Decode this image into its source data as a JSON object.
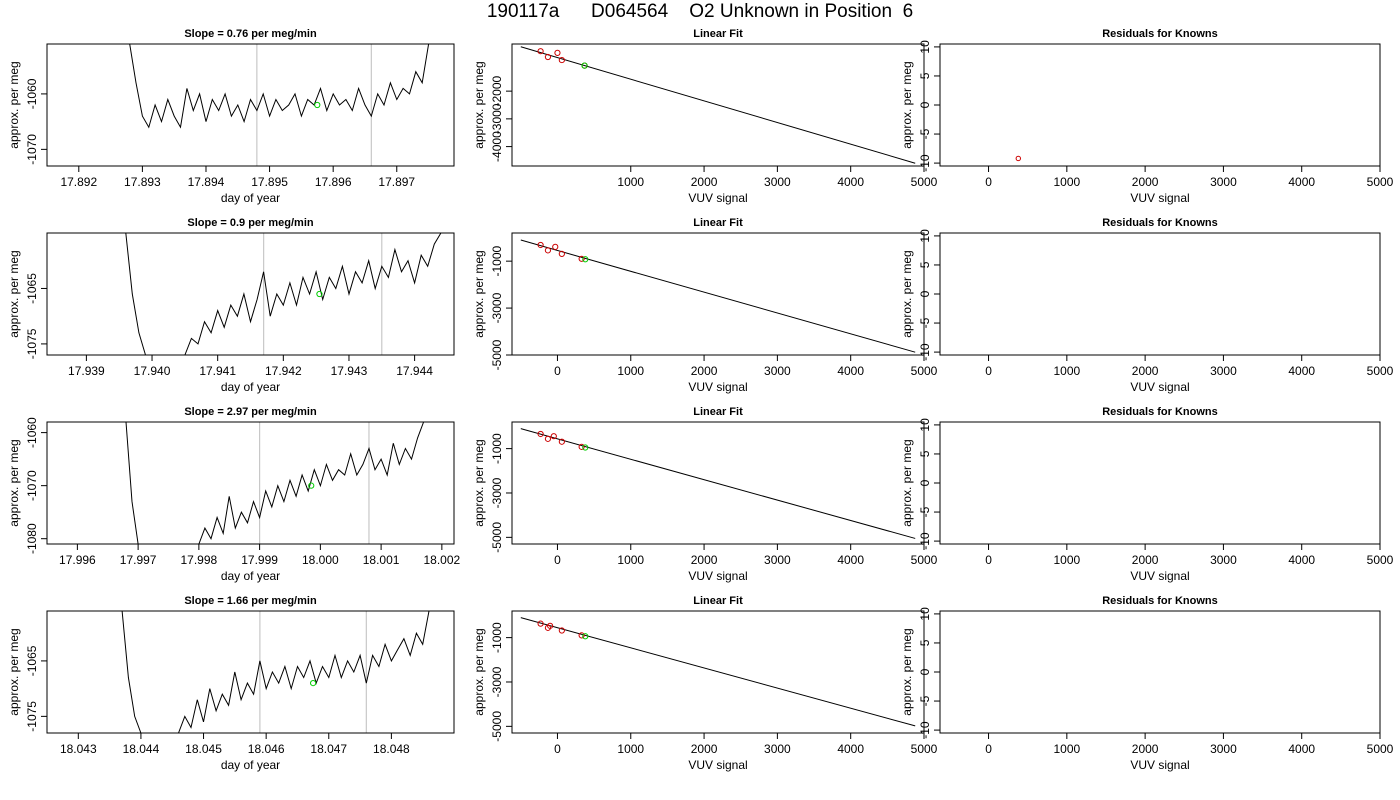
{
  "title": "190117a      D064564    O2 Unknown in Position  6",
  "colors": {
    "trace": "#000000",
    "vertical_marker": "#c8c8c8",
    "unknown_point": "#00cc00",
    "known_point": "#cc0000",
    "fit_line": "#000000"
  },
  "chart_data": [
    {
      "type": "line",
      "row": 1,
      "panel": "time-series",
      "title": "Slope =  0.76  per meg/min",
      "xlabel": "day of year",
      "ylabel": "approx. per meg",
      "xlim": [
        17.8915,
        17.8979
      ],
      "ylim": [
        -1073,
        -1051
      ],
      "xticks": [
        "17.892",
        "17.893",
        "17.894",
        "17.895",
        "17.896",
        "17.897"
      ],
      "yticks": [
        "-1060",
        "-1070"
      ],
      "vlines": [
        17.8948,
        17.8966
      ],
      "series": [
        {
          "x": [
            17.8928,
            17.8929,
            17.893,
            17.8931,
            17.8932,
            17.8933,
            17.8934,
            17.8935,
            17.8936,
            17.8937,
            17.8938,
            17.8939,
            17.894,
            17.8941,
            17.8942,
            17.8943,
            17.8944,
            17.8945,
            17.8946,
            17.8947,
            17.8948,
            17.8949,
            17.895,
            17.8951,
            17.8952,
            17.8953,
            17.8954,
            17.8955,
            17.8956,
            17.8957,
            17.8958,
            17.8959,
            17.896,
            17.8961,
            17.8962,
            17.8963,
            17.8964,
            17.8965,
            17.8966,
            17.8967,
            17.8968,
            17.8969,
            17.897,
            17.8971,
            17.8972,
            17.8973,
            17.8974,
            17.8975
          ],
          "y": [
            -1051,
            -1058,
            -1064,
            -1066,
            -1062,
            -1065,
            -1061,
            -1064,
            -1066,
            -1059,
            -1063,
            -1060,
            -1065,
            -1061,
            -1063,
            -1060,
            -1064,
            -1062,
            -1065,
            -1061,
            -1063,
            -1060,
            -1064,
            -1061,
            -1063,
            -1062,
            -1060,
            -1064,
            -1061,
            -1062,
            -1059,
            -1063,
            -1060,
            -1062,
            -1061,
            -1063,
            -1059,
            -1062,
            -1064,
            -1060,
            -1062,
            -1058,
            -1061,
            -1059,
            -1060,
            -1056,
            -1058,
            -1051
          ]
        }
      ],
      "markers": [
        {
          "x": 17.89575,
          "y": -1062,
          "kind": "unknown"
        }
      ]
    },
    {
      "type": "scatter",
      "row": 1,
      "panel": "linear-fit",
      "title": "Linear Fit",
      "xlabel": "VUV signal",
      "ylabel": "approx. per meg",
      "xlim": [
        -620,
        5000
      ],
      "ylim": [
        -4700,
        -300
      ],
      "xticks": [
        1000,
        2000,
        3000,
        4000,
        5000
      ],
      "yticks": [
        -2000,
        -3000,
        -4000
      ],
      "fit": {
        "x": [
          -500,
          4880
        ],
        "y": [
          -400,
          -4600
        ]
      },
      "knowns": [
        {
          "x": -230,
          "y": -560
        },
        {
          "x": -130,
          "y": -770
        },
        {
          "x": 0,
          "y": -620
        },
        {
          "x": 60,
          "y": -880
        },
        {
          "x": 370,
          "y": -1080
        }
      ],
      "unknowns": [
        {
          "x": 370,
          "y": -1080
        }
      ]
    },
    {
      "type": "scatter",
      "row": 1,
      "panel": "residuals",
      "title": "Residuals for Knowns",
      "xlabel": "VUV signal",
      "ylabel": "approx. per meg",
      "xlim": [
        -620,
        5000
      ],
      "ylim": [
        -10.5,
        10.5
      ],
      "xticks": [
        0,
        1000,
        2000,
        3000,
        4000,
        5000
      ],
      "yticks": [
        -10,
        -5,
        0,
        5,
        10
      ],
      "points": [
        {
          "x": 380,
          "y": -9.2
        }
      ]
    },
    {
      "type": "line",
      "row": 2,
      "panel": "time-series",
      "title": "Slope =  0.9  per meg/min",
      "xlabel": "day of year",
      "ylabel": "approx. per meg",
      "xlim": [
        17.9384,
        17.9446
      ],
      "ylim": [
        -1077,
        -1055
      ],
      "xticks": [
        "17.939",
        "17.940",
        "17.941",
        "17.942",
        "17.943",
        "17.944"
      ],
      "yticks": [
        "-1065",
        "-1075"
      ],
      "vlines": [
        17.9417,
        17.9435
      ],
      "series": [
        {
          "x": [
            17.9396,
            17.9397,
            17.9398,
            17.9399,
            17.9405,
            17.9406,
            17.9407,
            17.9408,
            17.9409,
            17.941,
            17.9411,
            17.9412,
            17.9413,
            17.9414,
            17.9415,
            17.9416,
            17.9417,
            17.9418,
            17.9419,
            17.942,
            17.9421,
            17.9422,
            17.9423,
            17.9424,
            17.9425,
            17.9426,
            17.9427,
            17.9428,
            17.9429,
            17.943,
            17.9431,
            17.9432,
            17.9433,
            17.9434,
            17.9435,
            17.9436,
            17.9437,
            17.9438,
            17.9439,
            17.944,
            17.9441,
            17.9442,
            17.9443,
            17.9444
          ],
          "y": [
            -1055,
            -1066,
            -1073,
            -1077,
            -1077,
            -1074,
            -1075,
            -1071,
            -1073,
            -1069,
            -1072,
            -1068,
            -1070,
            -1066,
            -1071,
            -1067,
            -1062,
            -1070,
            -1066,
            -1068,
            -1064,
            -1068,
            -1063,
            -1066,
            -1062,
            -1067,
            -1063,
            -1065,
            -1061,
            -1066,
            -1062,
            -1064,
            -1060,
            -1065,
            -1061,
            -1063,
            -1058,
            -1062,
            -1060,
            -1064,
            -1059,
            -1061,
            -1057,
            -1055
          ]
        }
      ],
      "markers": [
        {
          "x": 17.94255,
          "y": -1066,
          "kind": "unknown"
        }
      ]
    },
    {
      "type": "scatter",
      "row": 2,
      "panel": "linear-fit",
      "title": "Linear Fit",
      "xlabel": "VUV signal",
      "ylabel": "approx. per meg",
      "xlim": [
        -620,
        5000
      ],
      "ylim": [
        -5000,
        200
      ],
      "xticks": [
        0,
        1000,
        2000,
        3000,
        4000,
        5000
      ],
      "yticks": [
        -1000,
        -3000,
        -5000
      ],
      "fit": {
        "x": [
          -500,
          4880
        ],
        "y": [
          -100,
          -4880
        ]
      },
      "knowns": [
        {
          "x": -230,
          "y": -310
        },
        {
          "x": -130,
          "y": -540
        },
        {
          "x": -30,
          "y": -390
        },
        {
          "x": 60,
          "y": -690
        },
        {
          "x": 330,
          "y": -900
        }
      ],
      "unknowns": [
        {
          "x": 380,
          "y": -920
        }
      ]
    },
    {
      "type": "scatter",
      "row": 2,
      "panel": "residuals",
      "title": "Residuals for Knowns",
      "xlabel": "VUV signal",
      "ylabel": "approx. per meg",
      "xlim": [
        -620,
        5000
      ],
      "ylim": [
        -10.5,
        10.5
      ],
      "xticks": [
        0,
        1000,
        2000,
        3000,
        4000,
        5000
      ],
      "yticks": [
        -10,
        -5,
        0,
        5,
        10
      ],
      "points": []
    },
    {
      "type": "line",
      "row": 3,
      "panel": "time-series",
      "title": "Slope =  2.97  per meg/min",
      "xlabel": "day of year",
      "ylabel": "approx. per meg",
      "xlim": [
        17.9955,
        18.0022
      ],
      "ylim": [
        -1081,
        -1058
      ],
      "xticks": [
        "17.996",
        "17.997",
        "17.998",
        "17.999",
        "18.000",
        "18.001",
        "18.002"
      ],
      "yticks": [
        "-1060",
        "-1070",
        "-1080"
      ],
      "vlines": [
        17.999,
        18.0008
      ],
      "series": [
        {
          "x": [
            17.9968,
            17.9969,
            17.997,
            17.998,
            17.9981,
            17.9982,
            17.9983,
            17.9984,
            17.9985,
            17.9986,
            17.9987,
            17.9988,
            17.9989,
            17.999,
            17.9991,
            17.9992,
            17.9993,
            17.9994,
            17.9995,
            17.9996,
            17.9997,
            17.9998,
            17.9999,
            18.0,
            18.0001,
            18.0002,
            18.0003,
            18.0004,
            18.0005,
            18.0006,
            18.0007,
            18.0008,
            18.0009,
            18.001,
            18.0011,
            18.0012,
            18.0013,
            18.0014,
            18.0015,
            18.0016,
            18.0017
          ],
          "y": [
            -1058,
            -1073,
            -1081,
            -1081,
            -1078,
            -1080,
            -1076,
            -1079,
            -1072,
            -1078,
            -1075,
            -1077,
            -1073,
            -1076,
            -1071,
            -1074,
            -1070,
            -1073,
            -1069,
            -1072,
            -1068,
            -1071,
            -1067,
            -1070,
            -1066,
            -1069,
            -1067,
            -1068,
            -1064,
            -1068,
            -1066,
            -1063,
            -1067,
            -1065,
            -1068,
            -1062,
            -1066,
            -1063,
            -1065,
            -1061,
            -1058
          ]
        }
      ],
      "markers": [
        {
          "x": 17.99985,
          "y": -1070,
          "kind": "unknown"
        }
      ]
    },
    {
      "type": "scatter",
      "row": 3,
      "panel": "linear-fit",
      "title": "Linear Fit",
      "xlabel": "VUV signal",
      "ylabel": "approx. per meg",
      "xlim": [
        -620,
        5000
      ],
      "ylim": [
        -5300,
        200
      ],
      "xticks": [
        0,
        1000,
        2000,
        3000,
        4000,
        5000
      ],
      "yticks": [
        -1000,
        -3000,
        -5000
      ],
      "fit": {
        "x": [
          -500,
          4880
        ],
        "y": [
          -100,
          -5050
        ]
      },
      "knowns": [
        {
          "x": -230,
          "y": -340
        },
        {
          "x": -130,
          "y": -560
        },
        {
          "x": -50,
          "y": -440
        },
        {
          "x": 60,
          "y": -690
        },
        {
          "x": 330,
          "y": -920
        }
      ],
      "unknowns": [
        {
          "x": 380,
          "y": -950
        }
      ]
    },
    {
      "type": "scatter",
      "row": 3,
      "panel": "residuals",
      "title": "Residuals for Knowns",
      "xlabel": "VUV signal",
      "ylabel": "approx. per meg",
      "xlim": [
        -620,
        5000
      ],
      "ylim": [
        -10.5,
        10.5
      ],
      "xticks": [
        0,
        1000,
        2000,
        3000,
        4000,
        5000
      ],
      "yticks": [
        -10,
        -5,
        0,
        5,
        10
      ],
      "points": []
    },
    {
      "type": "line",
      "row": 4,
      "panel": "time-series",
      "title": "Slope =  1.66  per meg/min",
      "xlabel": "day of year",
      "ylabel": "approx. per meg",
      "xlim": [
        18.0425,
        18.049
      ],
      "ylim": [
        -1078,
        -1056
      ],
      "xticks": [
        "18.043",
        "18.044",
        "18.045",
        "18.046",
        "18.047",
        "18.048"
      ],
      "yticks": [
        "-1065",
        "-1075"
      ],
      "vlines": [
        18.0459,
        18.0476
      ],
      "series": [
        {
          "x": [
            18.0437,
            18.0438,
            18.0439,
            18.044,
            18.0446,
            18.0447,
            18.0448,
            18.0449,
            18.045,
            18.0451,
            18.0452,
            18.0453,
            18.0454,
            18.0455,
            18.0456,
            18.0457,
            18.0458,
            18.0459,
            18.046,
            18.0461,
            18.0462,
            18.0463,
            18.0464,
            18.0465,
            18.0466,
            18.0467,
            18.0468,
            18.0469,
            18.047,
            18.0471,
            18.0472,
            18.0473,
            18.0474,
            18.0475,
            18.0476,
            18.0477,
            18.0478,
            18.0479,
            18.048,
            18.0481,
            18.0482,
            18.0483,
            18.0484,
            18.0485,
            18.0486
          ],
          "y": [
            -1056,
            -1068,
            -1075,
            -1078,
            -1078,
            -1075,
            -1077,
            -1072,
            -1076,
            -1070,
            -1074,
            -1071,
            -1073,
            -1067,
            -1072,
            -1069,
            -1071,
            -1065,
            -1070,
            -1067,
            -1069,
            -1066,
            -1070,
            -1066,
            -1068,
            -1065,
            -1069,
            -1066,
            -1068,
            -1064,
            -1068,
            -1065,
            -1067,
            -1064,
            -1069,
            -1064,
            -1066,
            -1062,
            -1065,
            -1063,
            -1061,
            -1064,
            -1060,
            -1062,
            -1056
          ]
        }
      ],
      "markers": [
        {
          "x": 18.04675,
          "y": -1069,
          "kind": "unknown"
        }
      ]
    },
    {
      "type": "scatter",
      "row": 4,
      "panel": "linear-fit",
      "title": "Linear Fit",
      "xlabel": "VUV signal",
      "ylabel": "approx. per meg",
      "xlim": [
        -620,
        5000
      ],
      "ylim": [
        -5300,
        200
      ],
      "xticks": [
        0,
        1000,
        2000,
        3000,
        4000,
        5000
      ],
      "yticks": [
        -1000,
        -3000,
        -5000
      ],
      "fit": {
        "x": [
          -500,
          4880
        ],
        "y": [
          -100,
          -4980
        ]
      },
      "knowns": [
        {
          "x": -230,
          "y": -370
        },
        {
          "x": -130,
          "y": -560
        },
        {
          "x": -100,
          "y": -470
        },
        {
          "x": 60,
          "y": -680
        },
        {
          "x": 330,
          "y": -900
        }
      ],
      "unknowns": [
        {
          "x": 380,
          "y": -940
        }
      ]
    },
    {
      "type": "scatter",
      "row": 4,
      "panel": "residuals",
      "title": "Residuals for Knowns",
      "xlabel": "VUV signal",
      "ylabel": "approx. per meg",
      "xlim": [
        -620,
        5000
      ],
      "ylim": [
        -10.5,
        10.5
      ],
      "xticks": [
        0,
        1000,
        2000,
        3000,
        4000,
        5000
      ],
      "yticks": [
        -10,
        -5,
        0,
        5,
        10
      ],
      "points": []
    }
  ]
}
